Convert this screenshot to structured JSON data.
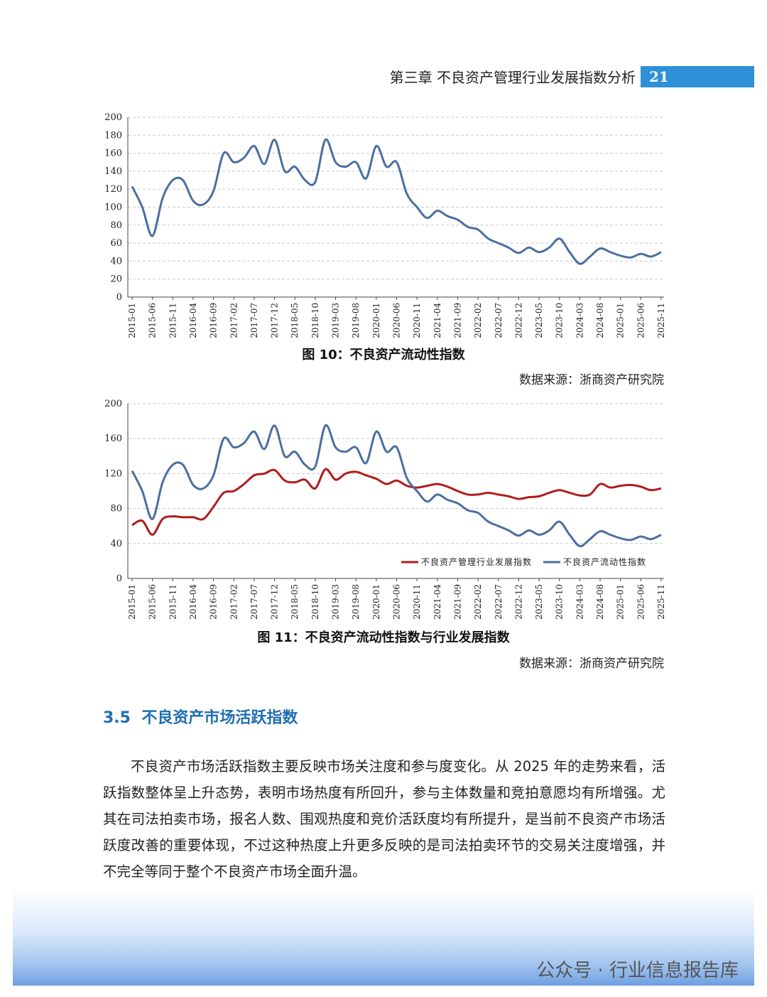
{
  "header": {
    "chapter": "第三章  不良资产管理行业发展指数分析",
    "page": "21"
  },
  "chart_data": [
    {
      "type": "line",
      "title": "图 10：不良资产流动性指数",
      "source": "数据来源：浙商资产研究院",
      "categories": [
        "2015-01",
        null,
        "2015-06",
        null,
        "2015-11",
        null,
        "2016-04",
        null,
        "2016-09",
        null,
        "2017-02",
        null,
        "2017-07",
        null,
        "2017-12",
        null,
        "2018-05",
        null,
        "2018-10",
        null,
        "2019-03",
        null,
        "2019-08",
        null,
        "2020-01",
        null,
        "2020-06",
        null,
        "2020-11",
        null,
        "2021-04",
        null,
        "2021-09",
        null,
        "2022-02",
        null,
        "2022-07",
        null,
        "2022-12",
        null,
        "2023-05",
        null,
        "2023-10",
        null,
        "2024-03",
        null,
        "2024-08",
        null,
        "2025-01",
        null,
        "2025-06",
        null,
        "2025-11"
      ],
      "series": [
        {
          "color": "#4a6fa0",
          "values": [
            123,
            100,
            68,
            110,
            130,
            130,
            107,
            103,
            118,
            160,
            150,
            155,
            168,
            148,
            175,
            140,
            145,
            130,
            128,
            175,
            150,
            145,
            150,
            132,
            168,
            145,
            150,
            115,
            100,
            88,
            96,
            90,
            86,
            78,
            75,
            65,
            60,
            55,
            49,
            55,
            50,
            55,
            65,
            50,
            37,
            45,
            54,
            50,
            46,
            44,
            48,
            45,
            50
          ]
        }
      ],
      "ylim": [
        0,
        200
      ],
      "yticks": [
        0,
        20,
        40,
        60,
        80,
        100,
        120,
        140,
        160,
        180,
        200
      ],
      "grid": true
    },
    {
      "type": "line",
      "title": "图 11：不良资产流动性指数与行业发展指数",
      "source": "数据来源：浙商资产研究院",
      "categories": [
        "2015-01",
        null,
        "2015-06",
        null,
        "2015-11",
        null,
        "2016-04",
        null,
        "2016-09",
        null,
        "2017-02",
        null,
        "2017-07",
        null,
        "2017-12",
        null,
        "2018-05",
        null,
        "2018-10",
        null,
        "2019-03",
        null,
        "2019-08",
        null,
        "2020-01",
        null,
        "2020-06",
        null,
        "2020-11",
        null,
        "2021-04",
        null,
        "2021-09",
        null,
        "2022-02",
        null,
        "2022-07",
        null,
        "2022-12",
        null,
        "2023-05",
        null,
        "2023-10",
        null,
        "2024-03",
        null,
        "2024-08",
        null,
        "2025-01",
        null,
        "2025-06",
        null,
        "2025-11"
      ],
      "series": [
        {
          "name": "不良资产管理行业发展指数",
          "color": "#b01c1c",
          "values": [
            61,
            66,
            50,
            68,
            71,
            70,
            70,
            68,
            82,
            98,
            100,
            108,
            118,
            120,
            124,
            112,
            110,
            113,
            103,
            125,
            113,
            120,
            122,
            118,
            114,
            108,
            112,
            106,
            104,
            106,
            108,
            105,
            100,
            96,
            96,
            98,
            96,
            94,
            91,
            93,
            94,
            98,
            101,
            98,
            95,
            96,
            108,
            104,
            106,
            107,
            105,
            101,
            103
          ]
        },
        {
          "name": "不良资产流动性指数",
          "color": "#4a6fa0",
          "values": [
            123,
            100,
            68,
            110,
            130,
            130,
            107,
            103,
            118,
            160,
            150,
            155,
            168,
            148,
            175,
            140,
            145,
            130,
            128,
            175,
            150,
            145,
            150,
            132,
            168,
            145,
            150,
            115,
            100,
            88,
            96,
            90,
            86,
            78,
            75,
            65,
            60,
            55,
            49,
            55,
            50,
            55,
            65,
            50,
            37,
            45,
            54,
            50,
            46,
            44,
            48,
            45,
            50
          ]
        }
      ],
      "ylim": [
        0,
        200
      ],
      "yticks": [
        0,
        40,
        80,
        120,
        160,
        200
      ],
      "grid": true,
      "legend": "lower right"
    }
  ],
  "section": {
    "number": "3.5",
    "title": "不良资产市场活跃指数"
  },
  "body": "不良资产市场活跃指数主要反映市场关注度和参与度变化。从 2025 年的走势来看，活跃指数整体呈上升态势，表明市场热度有所回升，参与主体数量和竞拍意愿均有所增强。尤其在司法拍卖市场，报名人数、围观热度和竞价活跃度均有所提升，是当前不良资产市场活跃度改善的重要体现，不过这种热度上升更多反映的是司法拍卖环节的交易关注度增强，并不完全等同于整个不良资产市场全面升温。",
  "footer": {
    "watermark": "公众号 · 行业信息报告库"
  }
}
